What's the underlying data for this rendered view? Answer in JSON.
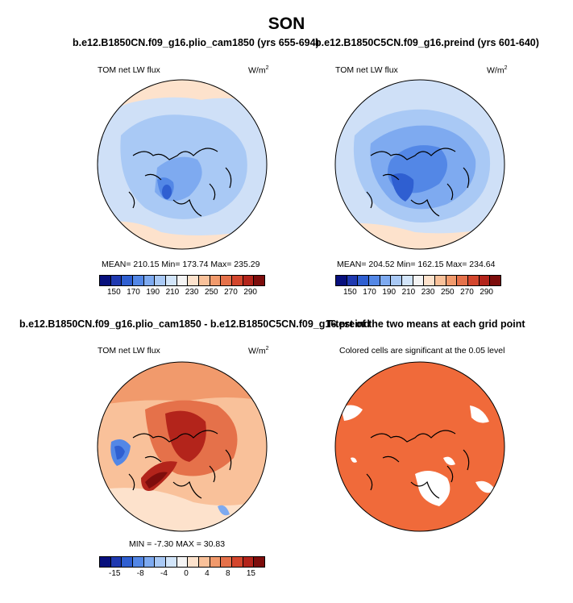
{
  "title": "SON",
  "panels": {
    "p1": {
      "subtitle": "b.e12.B1850CN.f09_g16.plio_cam1850 (yrs 655-694)",
      "left_label": "TOM net LW flux",
      "units": "W/m",
      "units_sup": "2",
      "stats": "MEAN= 210.15   Min= 173.74   Max= 235.29"
    },
    "p2": {
      "subtitle": "b.e12.B1850C5CN.f09_g16.preind (yrs 601-640)",
      "left_label": "TOM net LW flux",
      "units": "W/m",
      "units_sup": "2",
      "stats": "MEAN= 204.52   Min= 162.15   Max= 234.64"
    },
    "p3": {
      "subtitle": "b.e12.B1850CN.f09_g16.plio_cam1850 - b.e12.B1850C5CN.f09_g16.preind",
      "left_label": "TOM net LW flux",
      "units": "W/m",
      "units_sup": "2",
      "stats": "MIN =   -7.30  MAX =   30.83"
    },
    "p4": {
      "subtitle": "T-test of the two means at each grid point",
      "left_label": "Colored cells are significant at the 0.05 level"
    }
  },
  "colorbars": {
    "top": {
      "ticks": [
        "150",
        "170",
        "190",
        "210",
        "230",
        "250",
        "270",
        "290"
      ],
      "colors": [
        "#08107d",
        "#1f39b0",
        "#2f5fd1",
        "#5387e6",
        "#7eaaf0",
        "#a9c9f5",
        "#d2e5fa",
        "#f4f4f4",
        "#fde2cc",
        "#f9c19a",
        "#f19a6c",
        "#e5714a",
        "#d3462d",
        "#b3241b",
        "#7d0d0c"
      ]
    },
    "bottom": {
      "ticks": [
        "-15",
        "-8",
        "-4",
        "0",
        "4",
        "8",
        "15"
      ],
      "colors": [
        "#08107d",
        "#1f39b0",
        "#2f5fd1",
        "#5387e6",
        "#7eaaf0",
        "#a9c9f5",
        "#d2e5fa",
        "#f4f4f4",
        "#fde2cc",
        "#f9c19a",
        "#f19a6c",
        "#e5714a",
        "#d3462d",
        "#b3241b",
        "#7d0d0c"
      ]
    }
  },
  "fields": {
    "p1": {
      "mean": 210.15,
      "min": 173.74,
      "max": 235.29
    },
    "p2": {
      "mean": 204.52,
      "min": 162.15,
      "max": 234.64
    },
    "p3": {
      "min": -7.3,
      "max": 30.83
    },
    "p4": {
      "significance_level": 0.05
    }
  }
}
